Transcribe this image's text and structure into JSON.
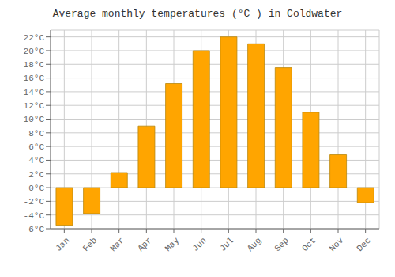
{
  "chart_data": {
    "type": "bar",
    "title": "Average monthly temperatures (°C ) in Coldwater",
    "categories": [
      "Jan",
      "Feb",
      "Mar",
      "Apr",
      "May",
      "Jun",
      "Jul",
      "Aug",
      "Sep",
      "Oct",
      "Nov",
      "Dec"
    ],
    "values": [
      -5.5,
      -3.8,
      2.2,
      9.0,
      15.2,
      20.0,
      22.0,
      21.0,
      17.5,
      11.0,
      4.8,
      -2.2
    ],
    "color": "#FFA500",
    "ylim": [
      -6,
      23
    ],
    "yticks": [
      {
        "value": -6,
        "label": "-6°C"
      },
      {
        "value": -4,
        "label": "-4°C"
      },
      {
        "value": -2,
        "label": "-2°C"
      },
      {
        "value": 0,
        "label": "0°C"
      },
      {
        "value": 2,
        "label": "2°C"
      },
      {
        "value": 4,
        "label": "4°C"
      },
      {
        "value": 6,
        "label": "6°C"
      },
      {
        "value": 8,
        "label": "8°C"
      },
      {
        "value": 10,
        "label": "10°C"
      },
      {
        "value": 12,
        "label": "12°C"
      },
      {
        "value": 14,
        "label": "14°C"
      },
      {
        "value": 16,
        "label": "16°C"
      },
      {
        "value": 18,
        "label": "18°C"
      },
      {
        "value": 20,
        "label": "20°C"
      },
      {
        "value": 22,
        "label": "22°C"
      }
    ],
    "grid": true
  }
}
